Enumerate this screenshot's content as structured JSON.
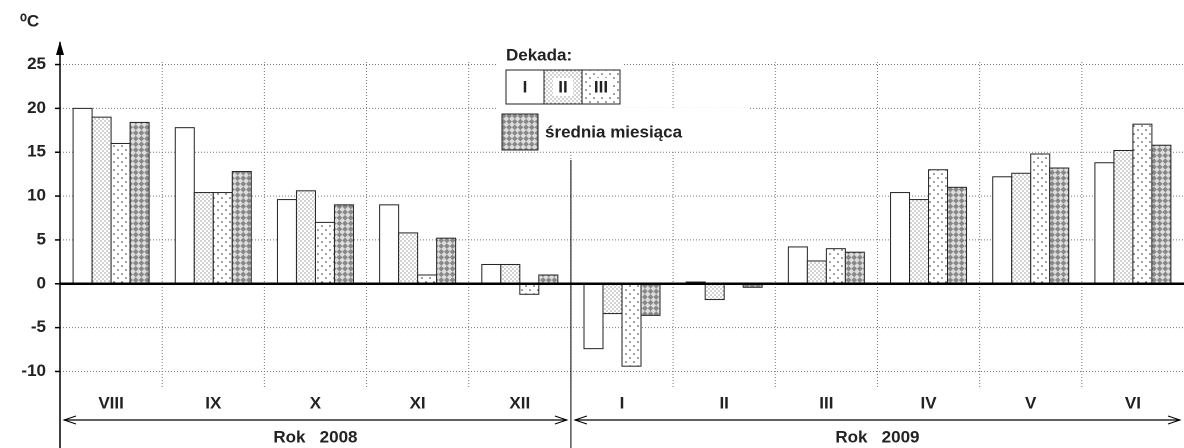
{
  "chart_data": {
    "type": "bar",
    "y_label": "⁰C",
    "legend_title": "Dekada:",
    "categories": [
      "VIII",
      "IX",
      "X",
      "XI",
      "XII",
      "I",
      "II",
      "III",
      "IV",
      "V",
      "VI"
    ],
    "groups": [
      {
        "label": "Rok   2008",
        "count": 5
      },
      {
        "label": "Rok   2009",
        "count": 6
      }
    ],
    "series": [
      {
        "name": "I",
        "color": "#ffffff",
        "values": [
          20,
          17.8,
          9.6,
          9,
          2.2,
          -7.4,
          0.2,
          4.2,
          10.4,
          12.2,
          13.8
        ]
      },
      {
        "name": "II",
        "color": "#e8e8e8",
        "values": [
          19,
          10.4,
          10.6,
          5.8,
          2.2,
          -3.4,
          -1.8,
          2.6,
          9.6,
          12.6,
          15.2
        ]
      },
      {
        "name": "III",
        "color": "#f4f4f4",
        "values": [
          16,
          10.4,
          7,
          1,
          -1.2,
          -9.4,
          0,
          4,
          13,
          14.8,
          18.2
        ]
      },
      {
        "name": "średnia miesiąca",
        "color": "#8a8a8a",
        "values": [
          18.4,
          12.8,
          9,
          5.2,
          1,
          -3.6,
          -0.4,
          3.6,
          11,
          13.2,
          15.8
        ]
      }
    ],
    "ylim": [
      -12,
      27
    ],
    "yticks": [
      -10,
      -5,
      0,
      5,
      10,
      15,
      20,
      25
    ],
    "grid": true
  }
}
